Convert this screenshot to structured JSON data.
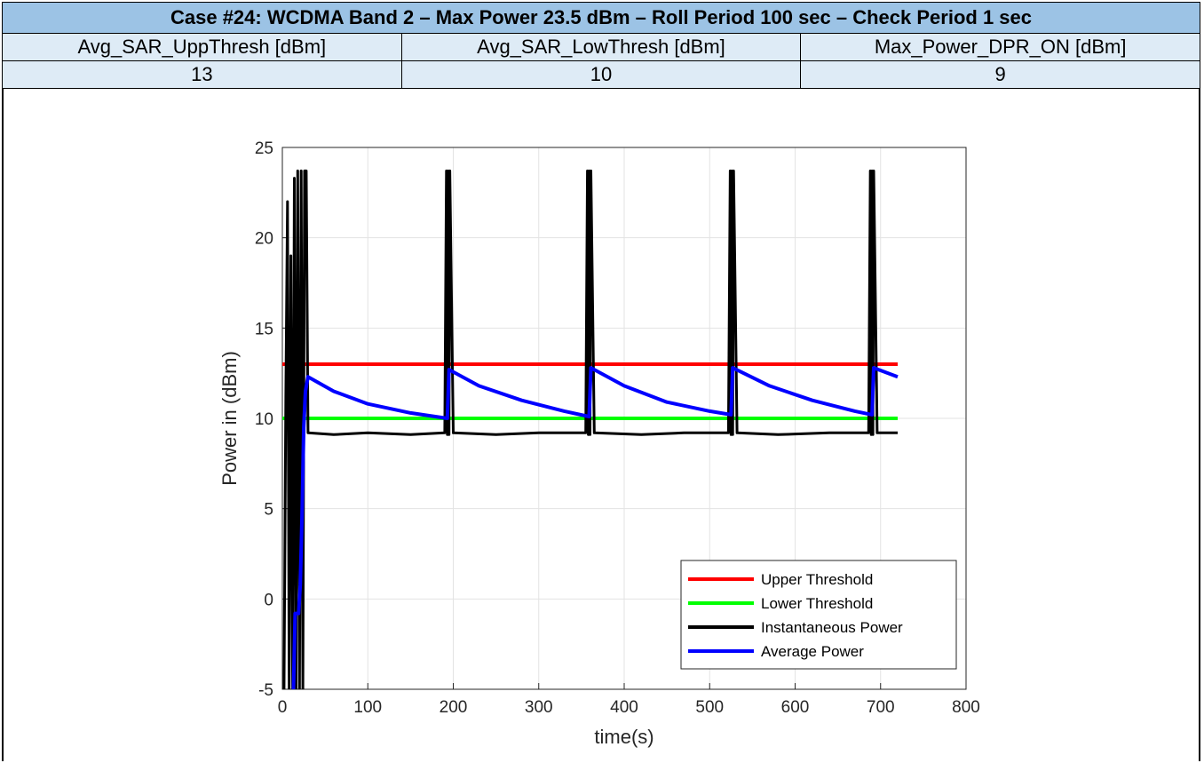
{
  "header": {
    "title": "Case #24: WCDMA Band 2 – Max Power 23.5 dBm – Roll Period 100 sec – Check Period 1 sec",
    "columns": [
      "Avg_SAR_UppThresh [dBm]",
      "Avg_SAR_LowThresh [dBm]",
      "Max_Power_DPR_ON [dBm]"
    ],
    "values": [
      "13",
      "10",
      "9"
    ]
  },
  "colors": {
    "title_bg": "#9cc3e5",
    "row_bg": "#deebf6",
    "upper": "#ff0000",
    "lower": "#00ff00",
    "instant": "#000000",
    "average": "#0000ff"
  },
  "chart_data": {
    "type": "line",
    "xlabel": "time(s)",
    "ylabel": "Power in (dBm)",
    "xlim": [
      0,
      800
    ],
    "ylim": [
      -5,
      25
    ],
    "xticks": [
      0,
      100,
      200,
      300,
      400,
      500,
      600,
      700,
      800
    ],
    "yticks": [
      -5,
      0,
      5,
      10,
      15,
      20,
      25
    ],
    "grid": true,
    "legend_position": "bottom-right",
    "series": [
      {
        "name": "Upper Threshold",
        "color": "#ff0000",
        "x": [
          0,
          720
        ],
        "y": [
          13,
          13
        ]
      },
      {
        "name": "Lower Threshold",
        "color": "#00ff00",
        "x": [
          0,
          720
        ],
        "y": [
          10,
          10
        ]
      },
      {
        "name": "Instantaneous Power",
        "color": "#000000",
        "x": [
          2,
          4,
          6,
          8,
          10,
          12,
          14,
          16,
          18,
          20,
          22,
          24,
          26,
          28,
          30,
          60,
          100,
          150,
          190,
          192,
          193,
          194,
          195,
          196,
          200,
          250,
          300,
          355,
          357,
          358,
          359,
          360,
          361,
          365,
          420,
          470,
          522,
          524,
          525,
          526,
          527,
          528,
          532,
          580,
          640,
          686,
          688,
          689,
          690,
          691,
          692,
          696,
          720
        ],
        "y": [
          -5,
          11.2,
          22,
          -5,
          19,
          -5,
          23.3,
          -5,
          23.7,
          -5,
          23.7,
          -5,
          23.7,
          23.7,
          9.2,
          9.1,
          9.2,
          9.1,
          9.2,
          23.7,
          9.1,
          23.7,
          9.1,
          23.7,
          9.2,
          9.1,
          9.2,
          9.2,
          23.7,
          9.1,
          23.7,
          9.1,
          23.7,
          9.2,
          9.1,
          9.2,
          9.2,
          23.7,
          9.1,
          23.7,
          9.1,
          23.7,
          9.2,
          9.1,
          9.2,
          9.2,
          23.7,
          9.1,
          23.7,
          9.1,
          23.7,
          9.2,
          9.2
        ]
      },
      {
        "name": "Average Power",
        "color": "#0000ff",
        "x": [
          13,
          15,
          17,
          19,
          21,
          23,
          25,
          27,
          30,
          60,
          100,
          150,
          193,
          195,
          230,
          280,
          330,
          359,
          361,
          400,
          450,
          500,
          525,
          527,
          570,
          620,
          670,
          690,
          692,
          720
        ],
        "y": [
          -5,
          -0.8,
          -0.8,
          -0.8,
          0.8,
          4.5,
          9.5,
          11.5,
          12.3,
          11.5,
          10.8,
          10.3,
          10.0,
          12.7,
          11.8,
          11.0,
          10.4,
          10.1,
          12.8,
          11.8,
          10.9,
          10.4,
          10.2,
          12.8,
          11.8,
          11.0,
          10.4,
          10.2,
          12.8,
          12.3
        ]
      }
    ]
  }
}
